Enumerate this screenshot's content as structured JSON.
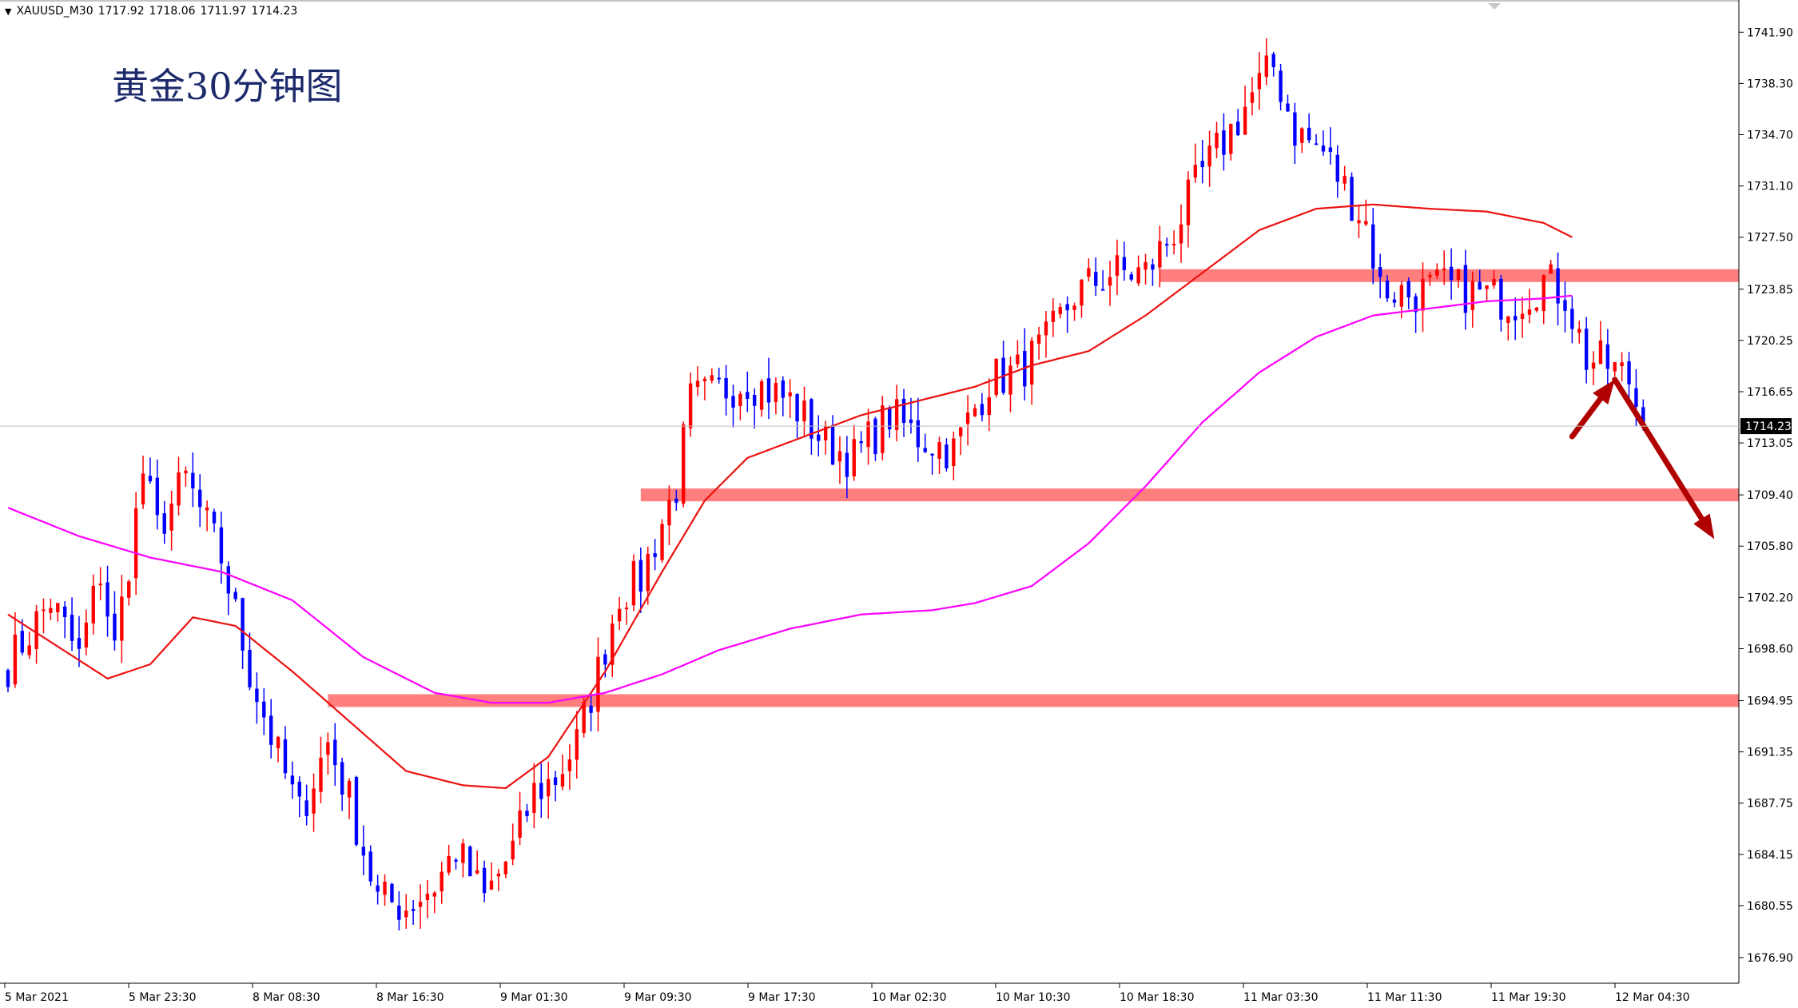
{
  "header": {
    "menu_glyph": "▼",
    "symbol": "XAUUSD_M30",
    "open": "1717.92",
    "high": "1718.06",
    "low": "1711.97",
    "close": "1714.23"
  },
  "chart_title": "黄金30分钟图",
  "colors": {
    "bull": "#ff0000",
    "bear": "#0000ff",
    "ma_fast": "#ee1111",
    "ma_slow": "#ff00ff",
    "zone": "#ff7f7f",
    "arrow": "#b00000",
    "grid": "#c0c0c0"
  },
  "chart_data": {
    "type": "candlestick",
    "title": "黄金30分钟图",
    "ylim": [
      1675.1,
      1743.6
    ],
    "y_ticks": [
      "1741.90",
      "1738.30",
      "1734.70",
      "1731.10",
      "1727.50",
      "1723.85",
      "1720.25",
      "1716.65",
      "1713.05",
      "1709.40",
      "1705.80",
      "1702.20",
      "1698.60",
      "1694.95",
      "1691.35",
      "1687.75",
      "1684.15",
      "1680.55",
      "1676.90"
    ],
    "x_ticks": [
      "5 Mar 2021",
      "5 Mar 23:30",
      "8 Mar 08:30",
      "8 Mar 16:30",
      "9 Mar 01:30",
      "9 Mar 09:30",
      "9 Mar 17:30",
      "10 Mar 02:30",
      "10 Mar 10:30",
      "10 Mar 18:30",
      "11 Mar 03:30",
      "11 Mar 11:30",
      "11 Mar 19:30",
      "12 Mar 04:30"
    ],
    "current_price": 1714.23,
    "current_price_label": "1714.23",
    "price_path_keypoints": [
      [
        0,
        1697.5
      ],
      [
        6,
        1702.0
      ],
      [
        10,
        1698.0
      ],
      [
        13,
        1704.0
      ],
      [
        15,
        1698.5
      ],
      [
        19,
        1711.0
      ],
      [
        21,
        1707.0
      ],
      [
        25,
        1710.5
      ],
      [
        30,
        1705.0
      ],
      [
        34,
        1697.0
      ],
      [
        38,
        1691.0
      ],
      [
        41,
        1687.0
      ],
      [
        45,
        1692.0
      ],
      [
        48,
        1688.0
      ],
      [
        52,
        1681.0
      ],
      [
        56,
        1680.5
      ],
      [
        60,
        1682.0
      ],
      [
        63,
        1684.5
      ],
      [
        67,
        1681.0
      ],
      [
        71,
        1684.5
      ],
      [
        74,
        1688.5
      ],
      [
        77,
        1689.5
      ],
      [
        80,
        1692.0
      ],
      [
        83,
        1697.0
      ],
      [
        86,
        1702.5
      ],
      [
        89,
        1703.5
      ],
      [
        92,
        1707.5
      ],
      [
        94,
        1710.0
      ],
      [
        96,
        1716.0
      ],
      [
        99,
        1716.5
      ],
      [
        104,
        1717.5
      ],
      [
        110,
        1716.0
      ],
      [
        115,
        1713.0
      ],
      [
        119,
        1712.0
      ],
      [
        124,
        1715.0
      ],
      [
        128,
        1713.5
      ],
      [
        133,
        1712.5
      ],
      [
        138,
        1717.5
      ],
      [
        142,
        1718.0
      ],
      [
        146,
        1720.0
      ],
      [
        150,
        1723.5
      ],
      [
        155,
        1725.0
      ],
      [
        160,
        1725.0
      ],
      [
        164,
        1728.0
      ],
      [
        168,
        1732.0
      ],
      [
        172,
        1735.0
      ],
      [
        175,
        1737.5
      ],
      [
        178,
        1739.5
      ],
      [
        181,
        1735.0
      ],
      [
        185,
        1733.5
      ],
      [
        188,
        1731.0
      ],
      [
        191,
        1728.5
      ],
      [
        193,
        1724.0
      ],
      [
        197,
        1723.5
      ],
      [
        202,
        1724.0
      ],
      [
        207,
        1723.5
      ],
      [
        212,
        1723.0
      ],
      [
        216,
        1724.5
      ],
      [
        219,
        1723.5
      ],
      [
        222,
        1719.0
      ],
      [
        225,
        1718.5
      ],
      [
        228,
        1717.5
      ],
      [
        230,
        1714.23
      ]
    ],
    "ma_fast_points": [
      [
        0,
        1701.0
      ],
      [
        14,
        1696.5
      ],
      [
        20,
        1697.5
      ],
      [
        26,
        1700.8
      ],
      [
        32,
        1700.2
      ],
      [
        40,
        1697.0
      ],
      [
        48,
        1693.5
      ],
      [
        56,
        1690.0
      ],
      [
        64,
        1689.0
      ],
      [
        70,
        1688.8
      ],
      [
        76,
        1691.0
      ],
      [
        84,
        1697.0
      ],
      [
        92,
        1704.0
      ],
      [
        98,
        1709.0
      ],
      [
        104,
        1712.0
      ],
      [
        112,
        1713.5
      ],
      [
        120,
        1715.0
      ],
      [
        128,
        1716.0
      ],
      [
        136,
        1717.0
      ],
      [
        144,
        1718.5
      ],
      [
        152,
        1719.5
      ],
      [
        160,
        1722.0
      ],
      [
        168,
        1725.0
      ],
      [
        176,
        1728.0
      ],
      [
        184,
        1729.5
      ],
      [
        192,
        1729.8
      ],
      [
        200,
        1729.5
      ],
      [
        208,
        1729.3
      ],
      [
        216,
        1728.5
      ],
      [
        220,
        1727.5
      ]
    ],
    "ma_slow_points": [
      [
        0,
        1708.5
      ],
      [
        10,
        1706.5
      ],
      [
        20,
        1705.0
      ],
      [
        30,
        1704.0
      ],
      [
        40,
        1702.0
      ],
      [
        50,
        1698.0
      ],
      [
        60,
        1695.5
      ],
      [
        68,
        1694.8
      ],
      [
        76,
        1694.8
      ],
      [
        84,
        1695.5
      ],
      [
        92,
        1696.8
      ],
      [
        100,
        1698.5
      ],
      [
        110,
        1700.0
      ],
      [
        120,
        1701.0
      ],
      [
        130,
        1701.3
      ],
      [
        136,
        1701.8
      ],
      [
        144,
        1703.0
      ],
      [
        152,
        1706.0
      ],
      [
        160,
        1710.0
      ],
      [
        168,
        1714.5
      ],
      [
        176,
        1718.0
      ],
      [
        184,
        1720.5
      ],
      [
        192,
        1722.0
      ],
      [
        200,
        1722.5
      ],
      [
        208,
        1723.0
      ],
      [
        216,
        1723.2
      ],
      [
        220,
        1723.4
      ]
    ],
    "zones": [
      {
        "price": 1724.8,
        "from": 162
      },
      {
        "price": 1709.4,
        "from": 89
      },
      {
        "price": 1694.95,
        "from": 45
      }
    ],
    "projection": [
      {
        "from": [
          220,
          1713.5
        ],
        "to": [
          226,
          1717.5
        ]
      },
      {
        "from": [
          226,
          1717.5
        ],
        "to": [
          240,
          1706.3
        ]
      }
    ]
  }
}
